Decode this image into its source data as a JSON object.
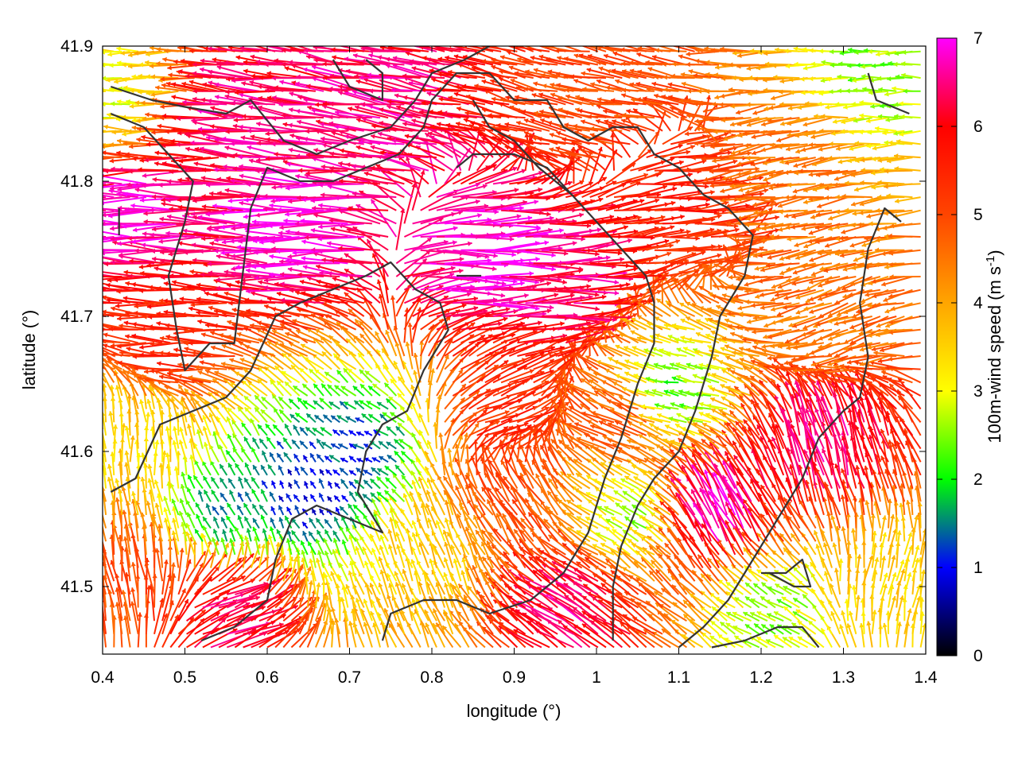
{
  "chart_data": {
    "type": "vector-field",
    "xlabel": "longitude (°)",
    "ylabel": "latitude (°)",
    "colorbar_label_prefix": "100m-wind speed (m s",
    "colorbar_label_exp": "-1",
    "colorbar_label_suffix": ")",
    "xlim": [
      0.4,
      1.4
    ],
    "ylim": [
      41.45,
      41.9
    ],
    "xticks": [
      "0.4",
      "0.5",
      "0.6",
      "0.7",
      "0.8",
      "0.9",
      "1",
      "1.1",
      "1.2",
      "1.3",
      "1.4"
    ],
    "yticks": [
      "41.5",
      "41.6",
      "41.7",
      "41.8",
      "41.9"
    ],
    "colorbar_range": [
      0,
      7
    ],
    "colorbar_ticks": [
      "0",
      "1",
      "2",
      "3",
      "4",
      "5",
      "6",
      "7"
    ],
    "colormap": [
      {
        "value": 0,
        "color": "#000000"
      },
      {
        "value": 1,
        "color": "#0000ff"
      },
      {
        "value": 1.5,
        "color": "#008080"
      },
      {
        "value": 2,
        "color": "#00ff00"
      },
      {
        "value": 3,
        "color": "#ffff00"
      },
      {
        "value": 4,
        "color": "#ffa500"
      },
      {
        "value": 5,
        "color": "#ff4500"
      },
      {
        "value": 6,
        "color": "#ff0000"
      },
      {
        "value": 7,
        "color": "#ff00ff"
      }
    ],
    "contour_color": "#333333",
    "wind_regions": [
      {
        "lon": 0.45,
        "lat": 41.78,
        "speed": 7,
        "dir_deg": 180
      },
      {
        "lon": 0.65,
        "lat": 41.76,
        "speed": 7,
        "dir_deg": 180
      },
      {
        "lon": 0.85,
        "lat": 41.74,
        "speed": 7,
        "dir_deg": 0
      },
      {
        "lon": 0.95,
        "lat": 41.72,
        "speed": 6.5,
        "dir_deg": 0
      },
      {
        "lon": 0.75,
        "lat": 41.86,
        "speed": 6.5,
        "dir_deg": 170
      },
      {
        "lon": 0.6,
        "lat": 41.84,
        "speed": 6.5,
        "dir_deg": 175
      },
      {
        "lon": 1.1,
        "lat": 41.78,
        "speed": 5.5,
        "dir_deg": 5
      },
      {
        "lon": 1.25,
        "lat": 41.82,
        "speed": 4.5,
        "dir_deg": 190
      },
      {
        "lon": 1.3,
        "lat": 41.7,
        "speed": 4.5,
        "dir_deg": 200
      },
      {
        "lon": 0.5,
        "lat": 41.68,
        "speed": 5.5,
        "dir_deg": 180
      },
      {
        "lon": 0.65,
        "lat": 41.57,
        "speed": 0.8,
        "dir_deg": 120
      },
      {
        "lon": 0.72,
        "lat": 41.6,
        "speed": 1.2,
        "dir_deg": 150
      },
      {
        "lon": 0.55,
        "lat": 41.55,
        "speed": 1.5,
        "dir_deg": 120
      },
      {
        "lon": 0.45,
        "lat": 41.6,
        "speed": 3.5,
        "dir_deg": 90
      },
      {
        "lon": 0.43,
        "lat": 41.5,
        "speed": 5,
        "dir_deg": 100
      },
      {
        "lon": 0.55,
        "lat": 41.48,
        "speed": 6.5,
        "dir_deg": 20
      },
      {
        "lon": 0.8,
        "lat": 41.52,
        "speed": 3.5,
        "dir_deg": 110
      },
      {
        "lon": 0.9,
        "lat": 41.56,
        "speed": 5,
        "dir_deg": 125
      },
      {
        "lon": 0.98,
        "lat": 41.48,
        "speed": 6.5,
        "dir_deg": 150
      },
      {
        "lon": 1.05,
        "lat": 41.55,
        "speed": 2.5,
        "dir_deg": 150
      },
      {
        "lon": 1.15,
        "lat": 41.55,
        "speed": 7,
        "dir_deg": 115
      },
      {
        "lon": 1.28,
        "lat": 41.6,
        "speed": 6.5,
        "dir_deg": 105
      },
      {
        "lon": 1.1,
        "lat": 41.64,
        "speed": 2,
        "dir_deg": 170
      },
      {
        "lon": 1.22,
        "lat": 41.48,
        "speed": 2.5,
        "dir_deg": 150
      },
      {
        "lon": 1.35,
        "lat": 41.5,
        "speed": 3.5,
        "dir_deg": 80
      },
      {
        "lon": 1.05,
        "lat": 41.62,
        "speed": 5,
        "dir_deg": 155
      },
      {
        "lon": 0.88,
        "lat": 41.62,
        "speed": 5.5,
        "dir_deg": 20
      },
      {
        "lon": 1.35,
        "lat": 41.88,
        "speed": 2.5,
        "dir_deg": 180
      },
      {
        "lon": 0.42,
        "lat": 41.86,
        "speed": 3,
        "dir_deg": 180
      },
      {
        "lon": 1.0,
        "lat": 41.86,
        "speed": 5,
        "dir_deg": 170
      }
    ],
    "contours": [
      [
        [
          0.41,
          41.87
        ],
        [
          0.46,
          41.86
        ],
        [
          0.5,
          41.855
        ],
        [
          0.55,
          41.85
        ],
        [
          0.58,
          41.86
        ],
        [
          0.62,
          41.83
        ],
        [
          0.66,
          41.82
        ],
        [
          0.7,
          41.83
        ],
        [
          0.75,
          41.84
        ],
        [
          0.78,
          41.86
        ],
        [
          0.8,
          41.88
        ],
        [
          0.84,
          41.89
        ],
        [
          0.87,
          41.9
        ]
      ],
      [
        [
          0.41,
          41.85
        ],
        [
          0.45,
          41.84
        ],
        [
          0.48,
          41.82
        ],
        [
          0.51,
          41.8
        ],
        [
          0.5,
          41.77
        ],
        [
          0.48,
          41.73
        ],
        [
          0.49,
          41.69
        ],
        [
          0.5,
          41.66
        ],
        [
          0.53,
          41.68
        ],
        [
          0.56,
          41.68
        ],
        [
          0.57,
          41.73
        ],
        [
          0.58,
          41.78
        ],
        [
          0.6,
          41.81
        ],
        [
          0.64,
          41.8
        ],
        [
          0.68,
          41.8
        ],
        [
          0.72,
          41.81
        ],
        [
          0.76,
          41.82
        ],
        [
          0.79,
          41.84
        ],
        [
          0.8,
          41.86
        ],
        [
          0.83,
          41.88
        ],
        [
          0.87,
          41.88
        ],
        [
          0.9,
          41.86
        ],
        [
          0.94,
          41.86
        ],
        [
          0.96,
          41.84
        ],
        [
          0.99,
          41.83
        ],
        [
          1.02,
          41.84
        ],
        [
          1.05,
          41.84
        ],
        [
          1.07,
          41.82
        ],
        [
          1.1,
          41.81
        ],
        [
          1.13,
          41.79
        ],
        [
          1.16,
          41.78
        ],
        [
          1.19,
          41.76
        ],
        [
          1.18,
          41.73
        ],
        [
          1.15,
          41.7
        ],
        [
          1.14,
          41.67
        ],
        [
          1.12,
          41.63
        ],
        [
          1.1,
          41.6
        ],
        [
          1.07,
          41.58
        ],
        [
          1.05,
          41.56
        ],
        [
          1.03,
          41.53
        ],
        [
          1.02,
          41.5
        ],
        [
          1.02,
          41.46
        ]
      ],
      [
        [
          0.41,
          41.57
        ],
        [
          0.44,
          41.58
        ],
        [
          0.47,
          41.62
        ],
        [
          0.51,
          41.63
        ],
        [
          0.55,
          41.64
        ],
        [
          0.58,
          41.66
        ],
        [
          0.61,
          41.7
        ],
        [
          0.64,
          41.71
        ],
        [
          0.68,
          41.72
        ],
        [
          0.72,
          41.73
        ],
        [
          0.75,
          41.74
        ],
        [
          0.78,
          41.72
        ],
        [
          0.81,
          41.71
        ],
        [
          0.82,
          41.69
        ],
        [
          0.79,
          41.66
        ],
        [
          0.77,
          41.63
        ],
        [
          0.74,
          41.62
        ],
        [
          0.72,
          41.6
        ],
        [
          0.71,
          41.57
        ],
        [
          0.73,
          41.55
        ],
        [
          0.74,
          41.54
        ],
        [
          0.7,
          41.55
        ],
        [
          0.66,
          41.56
        ],
        [
          0.63,
          41.55
        ],
        [
          0.61,
          41.52
        ],
        [
          0.6,
          41.49
        ],
        [
          0.56,
          41.47
        ],
        [
          0.52,
          41.46
        ]
      ],
      [
        [
          0.74,
          41.46
        ],
        [
          0.75,
          41.48
        ],
        [
          0.79,
          41.49
        ],
        [
          0.83,
          41.49
        ],
        [
          0.87,
          41.48
        ],
        [
          0.92,
          41.49
        ],
        [
          0.96,
          41.51
        ],
        [
          0.99,
          41.54
        ],
        [
          1.01,
          41.58
        ],
        [
          1.03,
          41.61
        ],
        [
          1.05,
          41.65
        ],
        [
          1.07,
          41.68
        ],
        [
          1.07,
          41.71
        ],
        [
          1.06,
          41.73
        ],
        [
          1.03,
          41.75
        ],
        [
          1.0,
          41.77
        ],
        [
          0.97,
          41.79
        ],
        [
          0.94,
          41.81
        ],
        [
          0.9,
          41.82
        ],
        [
          0.85,
          41.82
        ],
        [
          0.83,
          41.81
        ]
      ],
      [
        [
          0.85,
          41.86
        ],
        [
          0.87,
          41.84
        ],
        [
          0.9,
          41.83
        ],
        [
          0.93,
          41.81
        ],
        [
          0.97,
          41.79
        ]
      ],
      [
        [
          0.72,
          41.89
        ],
        [
          0.74,
          41.88
        ],
        [
          0.74,
          41.86
        ],
        [
          0.7,
          41.87
        ],
        [
          0.68,
          41.89
        ]
      ],
      [
        [
          1.33,
          41.88
        ],
        [
          1.34,
          41.86
        ],
        [
          1.38,
          41.85
        ]
      ],
      [
        [
          1.37,
          41.77
        ],
        [
          1.35,
          41.78
        ],
        [
          1.33,
          41.75
        ],
        [
          1.32,
          41.71
        ],
        [
          1.33,
          41.67
        ],
        [
          1.32,
          41.64
        ],
        [
          1.3,
          41.63
        ],
        [
          1.27,
          41.61
        ],
        [
          1.25,
          41.58
        ],
        [
          1.22,
          41.55
        ],
        [
          1.19,
          41.52
        ],
        [
          1.16,
          41.49
        ],
        [
          1.13,
          41.47
        ],
        [
          1.1,
          41.455
        ]
      ],
      [
        [
          1.2,
          41.51
        ],
        [
          1.23,
          41.51
        ],
        [
          1.25,
          41.52
        ],
        [
          1.26,
          41.5
        ],
        [
          1.24,
          41.5
        ],
        [
          1.21,
          41.51
        ]
      ],
      [
        [
          1.14,
          41.455
        ],
        [
          1.18,
          41.46
        ],
        [
          1.22,
          41.47
        ],
        [
          1.25,
          41.47
        ],
        [
          1.27,
          41.455
        ]
      ],
      [
        [
          0.42,
          41.78
        ],
        [
          0.42,
          41.76
        ]
      ],
      [
        [
          0.83,
          41.73
        ],
        [
          0.86,
          41.73
        ]
      ]
    ]
  }
}
